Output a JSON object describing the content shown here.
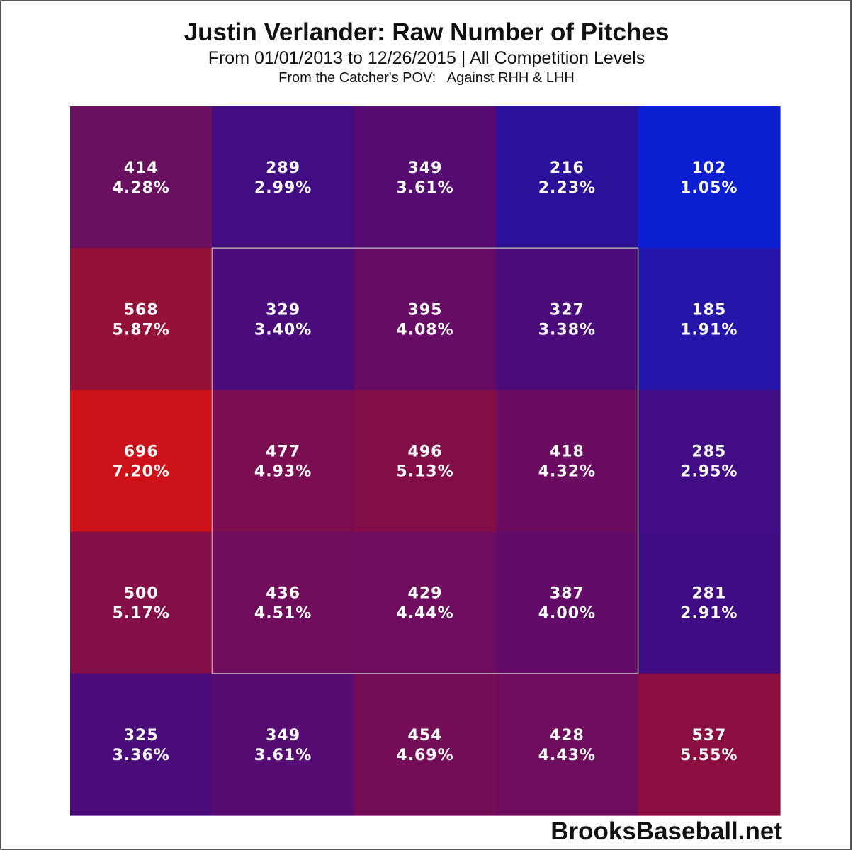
{
  "chart_data": {
    "type": "heatmap",
    "title": "Justin Verlander: Raw Number of Pitches",
    "subtitle": "From 01/01/2013 to 12/26/2015 | All Competition Levels",
    "pov_label": "From the Catcher's POV:",
    "batters_label": "Against RHH & LHH",
    "rows": 5,
    "cols": 5,
    "strike_zone": {
      "rows": [
        1,
        3
      ],
      "cols": [
        1,
        3
      ]
    },
    "cells": [
      [
        {
          "count": "414",
          "pct": "4.28%",
          "color": "#6a1060"
        },
        {
          "count": "289",
          "pct": "2.99%",
          "color": "#420c82"
        },
        {
          "count": "349",
          "pct": "3.61%",
          "color": "#560c72"
        },
        {
          "count": "216",
          "pct": "2.23%",
          "color": "#2b109a"
        },
        {
          "count": "102",
          "pct": "1.05%",
          "color": "#0d1fd2"
        }
      ],
      [
        {
          "count": "568",
          "pct": "5.87%",
          "color": "#941238"
        },
        {
          "count": "329",
          "pct": "3.40%",
          "color": "#4a0c7a"
        },
        {
          "count": "395",
          "pct": "4.08%",
          "color": "#660c64"
        },
        {
          "count": "327",
          "pct": "3.38%",
          "color": "#4a0c7a"
        },
        {
          "count": "185",
          "pct": "1.91%",
          "color": "#2515a8"
        }
      ],
      [
        {
          "count": "696",
          "pct": "7.20%",
          "color": "#cc1218"
        },
        {
          "count": "477",
          "pct": "4.93%",
          "color": "#7a0e50"
        },
        {
          "count": "496",
          "pct": "5.13%",
          "color": "#820e48"
        },
        {
          "count": "418",
          "pct": "4.32%",
          "color": "#6a0c60"
        },
        {
          "count": "285",
          "pct": "2.95%",
          "color": "#420c84"
        }
      ],
      [
        {
          "count": "500",
          "pct": "5.17%",
          "color": "#840e46"
        },
        {
          "count": "436",
          "pct": "4.51%",
          "color": "#700c5c"
        },
        {
          "count": "429",
          "pct": "4.44%",
          "color": "#6e0c5e"
        },
        {
          "count": "387",
          "pct": "4.00%",
          "color": "#620c68"
        },
        {
          "count": "281",
          "pct": "2.91%",
          "color": "#400c84"
        }
      ],
      [
        {
          "count": "325",
          "pct": "3.36%",
          "color": "#4a0c7a"
        },
        {
          "count": "349",
          "pct": "3.61%",
          "color": "#560c72"
        },
        {
          "count": "454",
          "pct": "4.69%",
          "color": "#740c58"
        },
        {
          "count": "428",
          "pct": "4.43%",
          "color": "#6e0c5e"
        },
        {
          "count": "537",
          "pct": "5.55%",
          "color": "#8c0e40"
        }
      ]
    ]
  },
  "watermark": "BrooksBaseball.net"
}
